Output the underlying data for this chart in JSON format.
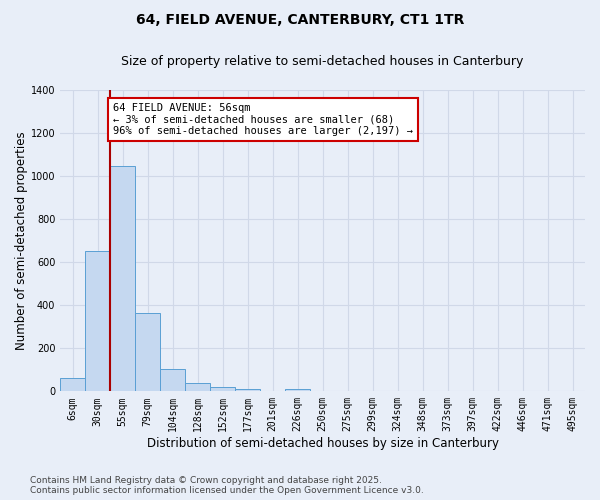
{
  "title_line1": "64, FIELD AVENUE, CANTERBURY, CT1 1TR",
  "title_line2": "Size of property relative to semi-detached houses in Canterbury",
  "xlabel": "Distribution of semi-detached houses by size in Canterbury",
  "ylabel": "Number of semi-detached properties",
  "categories": [
    "6sqm",
    "30sqm",
    "55sqm",
    "79sqm",
    "104sqm",
    "128sqm",
    "152sqm",
    "177sqm",
    "201sqm",
    "226sqm",
    "250sqm",
    "275sqm",
    "299sqm",
    "324sqm",
    "348sqm",
    "373sqm",
    "397sqm",
    "422sqm",
    "446sqm",
    "471sqm",
    "495sqm"
  ],
  "values": [
    62,
    650,
    1048,
    362,
    102,
    38,
    22,
    9,
    0,
    12,
    0,
    0,
    0,
    0,
    0,
    0,
    0,
    0,
    0,
    0,
    0
  ],
  "bar_color": "#c5d8f0",
  "bar_edge_color": "#5a9fd4",
  "vline_color": "#aa0000",
  "annotation_text": "64 FIELD AVENUE: 56sqm\n← 3% of semi-detached houses are smaller (68)\n96% of semi-detached houses are larger (2,197) →",
  "annotation_box_color": "#ffffff",
  "annotation_box_edge": "#cc0000",
  "ylim": [
    0,
    1400
  ],
  "yticks": [
    0,
    200,
    400,
    600,
    800,
    1000,
    1200,
    1400
  ],
  "background_color": "#e8eef8",
  "grid_color": "#d0d8e8",
  "footer_line1": "Contains HM Land Registry data © Crown copyright and database right 2025.",
  "footer_line2": "Contains public sector information licensed under the Open Government Licence v3.0.",
  "title_fontsize": 10,
  "subtitle_fontsize": 9,
  "axis_label_fontsize": 8.5,
  "tick_fontsize": 7,
  "annotation_fontsize": 7.5,
  "footer_fontsize": 6.5
}
